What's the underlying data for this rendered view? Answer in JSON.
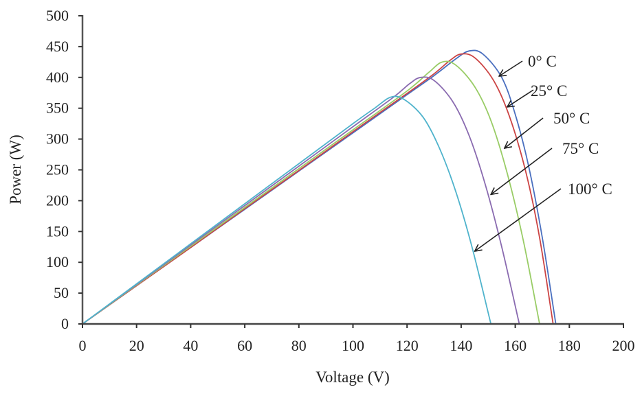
{
  "chart_data": {
    "type": "line",
    "title": "",
    "xlabel": "Voltage (V)",
    "ylabel": "Power (W)",
    "xlim": [
      0,
      200
    ],
    "ylim": [
      0,
      500
    ],
    "xticks": [
      0,
      20,
      40,
      60,
      80,
      100,
      120,
      140,
      160,
      180,
      200
    ],
    "yticks": [
      0,
      50,
      100,
      150,
      200,
      250,
      300,
      350,
      400,
      450,
      500
    ],
    "grid": false,
    "legend": "annotations with arrows at right",
    "series": [
      {
        "name": "0°C",
        "color": "#4a6fbf",
        "label": "0°C",
        "pmax": 443,
        "vmp": 143,
        "voc": 175,
        "x": [
          0,
          20,
          40,
          60,
          80,
          100,
          120,
          130,
          138,
          143,
          148,
          155,
          160,
          165,
          170,
          175,
          200
        ],
        "y": [
          0,
          62,
          124,
          186,
          248,
          310,
          372,
          403,
          430,
          443,
          438,
          400,
          340,
          255,
          140,
          0,
          0
        ]
      },
      {
        "name": "25°C",
        "color": "#cc4444",
        "label": "25°C",
        "pmax": 438,
        "vmp": 140,
        "voc": 174,
        "x": [
          0,
          20,
          40,
          60,
          80,
          100,
          120,
          130,
          136,
          140,
          145,
          152,
          158,
          164,
          169,
          174,
          200
        ],
        "y": [
          0,
          62,
          124,
          187,
          249,
          312,
          374,
          406,
          428,
          438,
          432,
          395,
          335,
          245,
          140,
          0,
          0
        ]
      },
      {
        "name": "50°C",
        "color": "#99cc66",
        "label": "50°C",
        "pmax": 425,
        "vmp": 133,
        "voc": 169,
        "x": [
          0,
          20,
          40,
          60,
          80,
          100,
          120,
          128,
          133,
          138,
          145,
          151,
          157,
          163,
          169,
          200
        ],
        "y": [
          0,
          63,
          126,
          189,
          252,
          315,
          378,
          408,
          425,
          420,
          385,
          330,
          245,
          135,
          0,
          0
        ]
      },
      {
        "name": "75°C",
        "color": "#8a6bb0",
        "label": "75°C",
        "pmax": 400,
        "vmp": 125,
        "voc": 161.5,
        "x": [
          0,
          20,
          40,
          60,
          80,
          100,
          115,
          121,
          125,
          130,
          137,
          143,
          149,
          155,
          161.5,
          200
        ],
        "y": [
          0,
          64,
          128,
          192,
          256,
          320,
          368,
          390,
          400,
          395,
          360,
          305,
          225,
          125,
          0,
          0
        ]
      },
      {
        "name": "100°C",
        "color": "#4fb3cc",
        "label": "100°C",
        "pmax": 368,
        "vmp": 114,
        "voc": 151,
        "x": [
          0,
          20,
          40,
          60,
          80,
          100,
          108,
          114,
          119,
          126,
          132,
          138,
          144,
          151,
          200
        ],
        "y": [
          0,
          65,
          130,
          195,
          260,
          325,
          350,
          368,
          364,
          335,
          285,
          215,
          125,
          0,
          0
        ]
      }
    ],
    "annotations": [
      {
        "text": "0°C",
        "arrow_to": [
          154,
          402
        ]
      },
      {
        "text": "25°C",
        "arrow_to": [
          157,
          352
        ]
      },
      {
        "text": "50°C",
        "arrow_to": [
          156,
          285
        ]
      },
      {
        "text": "75°C",
        "arrow_to": [
          151,
          210
        ]
      },
      {
        "text": "100°C",
        "arrow_to": [
          145,
          118
        ]
      }
    ]
  }
}
